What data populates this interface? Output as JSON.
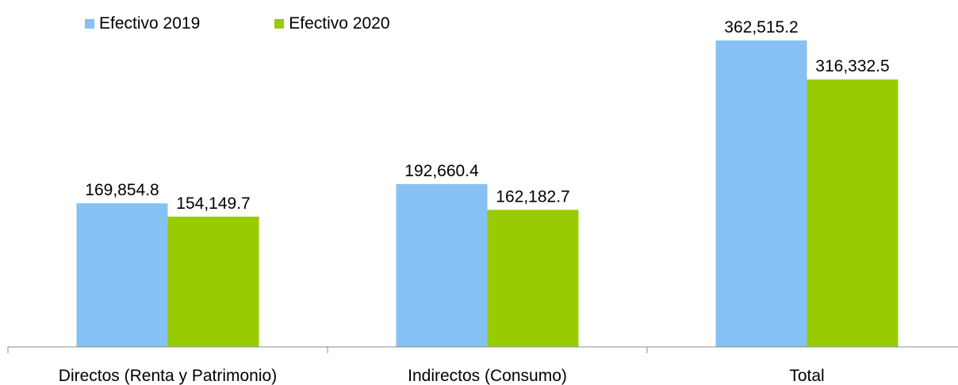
{
  "chart_data": {
    "type": "bar",
    "categories": [
      "Directos (Renta y Patrimonio)",
      "Indirectos (Consumo)",
      "Total"
    ],
    "series": [
      {
        "name": "Efectivo 2019",
        "color": "#85C1F2",
        "values": [
          169854.8,
          192660.4,
          362515.2
        ],
        "labels": [
          "169,854.8",
          "192,660.4",
          "362,515.2"
        ]
      },
      {
        "name": "Efectivo 2020",
        "color": "#99CC00",
        "values": [
          154149.7,
          162182.7,
          316332.5
        ],
        "labels": [
          "154,149.7",
          "162,182.7",
          "316,332.5"
        ]
      }
    ],
    "ylim": [
      0,
      400000
    ],
    "grid": false,
    "legend_position": "top-left"
  }
}
